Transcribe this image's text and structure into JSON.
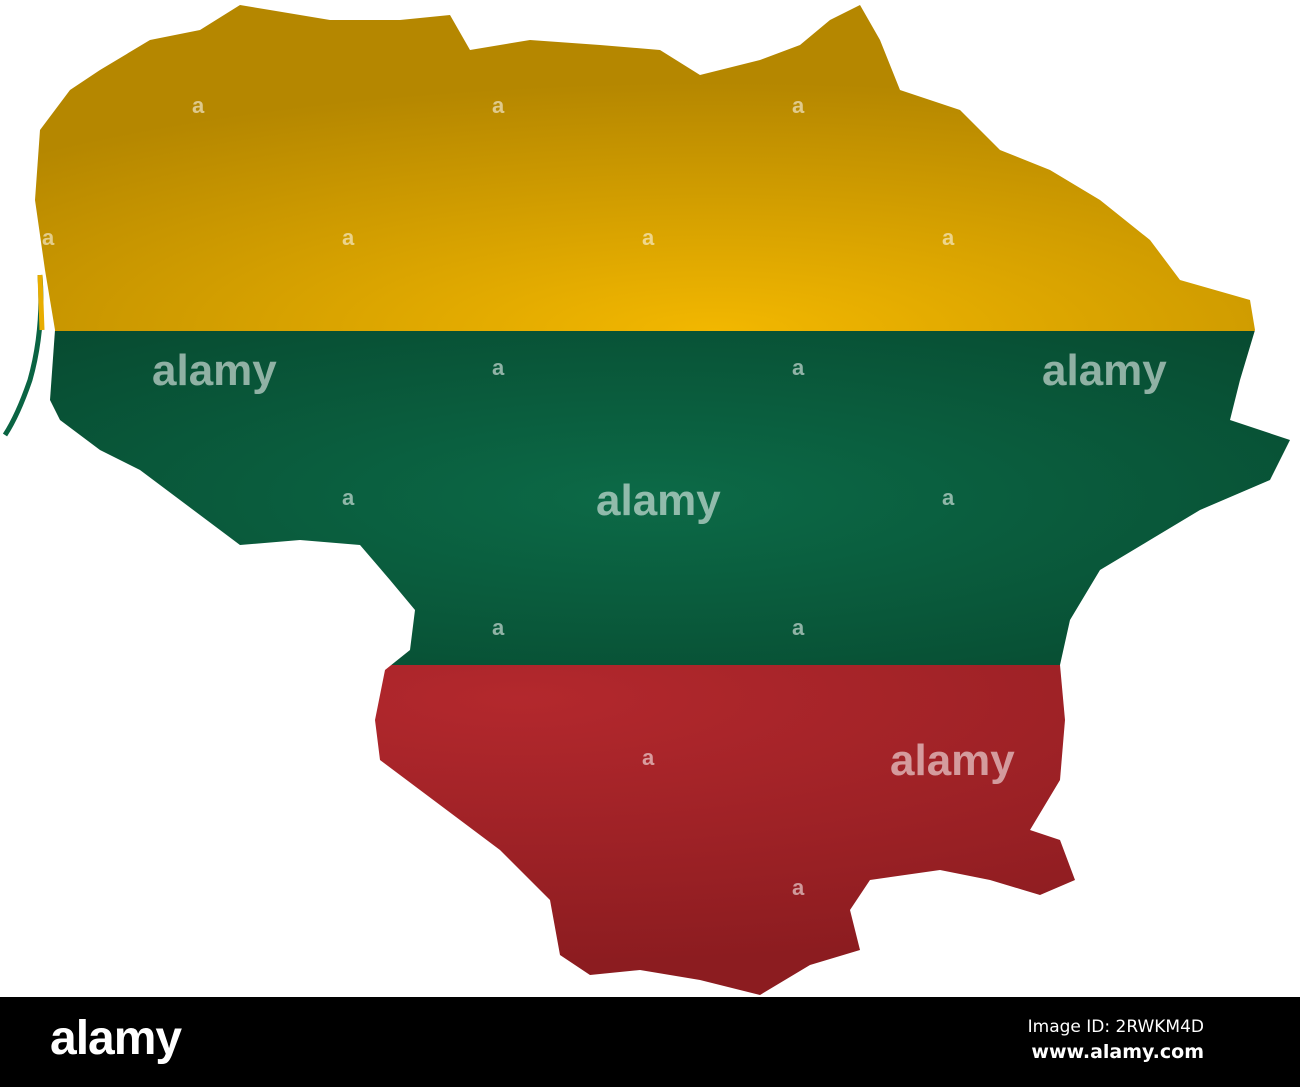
{
  "map": {
    "country": "Lithuania",
    "flag_colors": {
      "top": "#e8ad00",
      "middle": "#0a6443",
      "bottom": "#a8232a"
    }
  },
  "watermark": {
    "text": "alamy",
    "small_mark": "a"
  },
  "footer": {
    "logo": "alamy",
    "image_id": "Image ID: 2RWKM4D",
    "site": "www.alamy.com"
  }
}
